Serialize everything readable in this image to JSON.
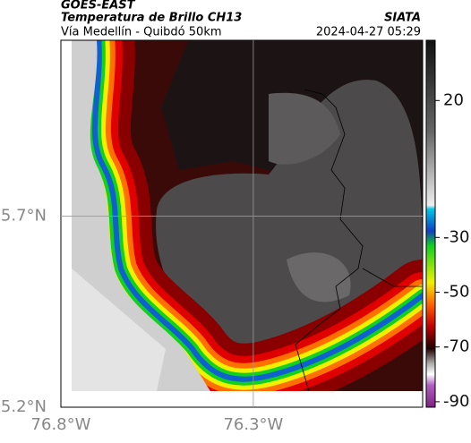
{
  "header": {
    "source": "GOES-EAST",
    "title": "Temperatura de Brillo CH13",
    "subtitle": "Vía Medellín - Quibdó 50km",
    "agency": "SIATA",
    "timestamp": "2024-04-27 05:29"
  },
  "map": {
    "xlim": [
      -76.8,
      -75.86
    ],
    "ylim": [
      5.2,
      6.16
    ],
    "xticks": [
      {
        "value": -76.8,
        "label": "76.8°W"
      },
      {
        "value": -76.3,
        "label": "76.3°W"
      }
    ],
    "yticks": [
      {
        "value": 5.2,
        "label": "5.2°N"
      },
      {
        "value": 5.7,
        "label": "5.7°N"
      }
    ],
    "grid": true
  },
  "colorbar": {
    "lim": [
      -92,
      42
    ],
    "ticks": [
      20,
      -30,
      -50,
      -70,
      -90
    ]
  }
}
